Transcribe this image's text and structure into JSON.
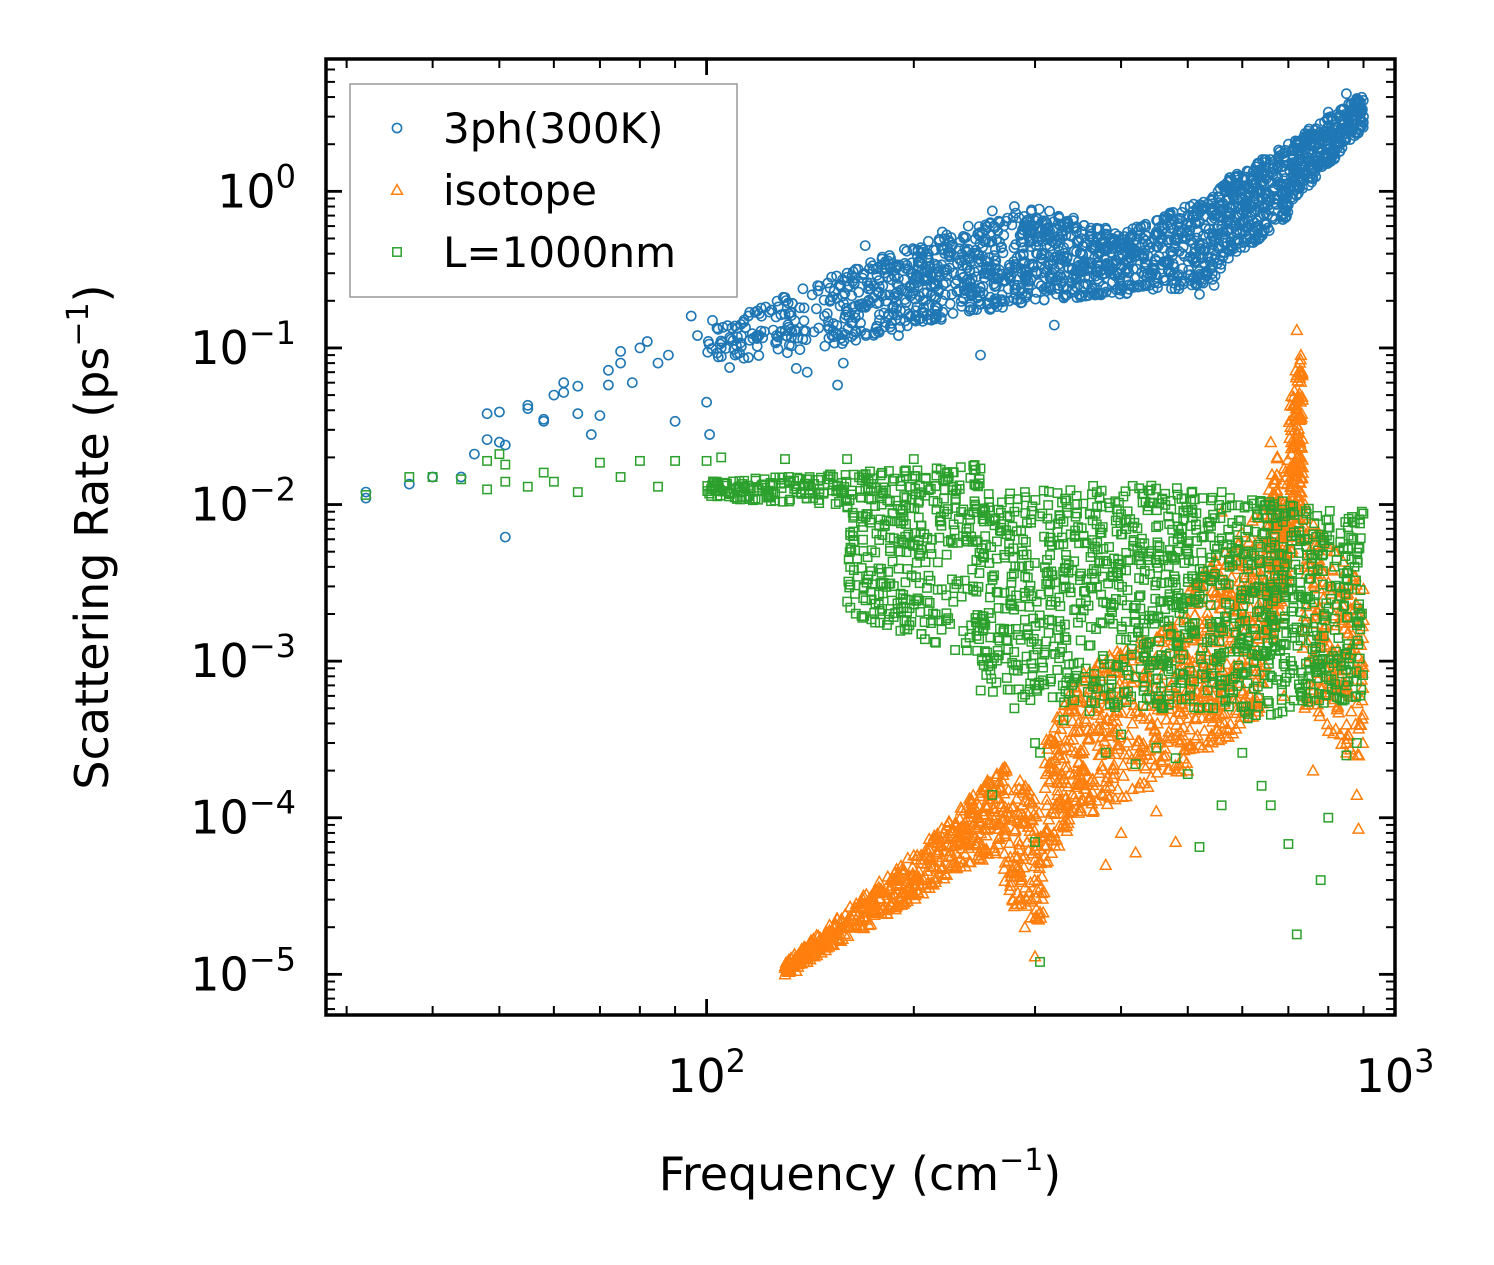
{
  "chart_data": {
    "type": "scatter",
    "title": "",
    "xscale": "log",
    "yscale": "log",
    "xlim": [
      28,
      1000
    ],
    "ylim": [
      5.5e-06,
      7
    ],
    "xlabel": {
      "main": "Frequency (cm",
      "sup": "−1",
      "tail": ")"
    },
    "ylabel": {
      "main": "Scattering Rate (ps",
      "sup": "−1",
      "tail": ")"
    },
    "x_ticks": [
      {
        "value": 100,
        "base": "10",
        "exp": "2"
      },
      {
        "value": 1000,
        "base": "10",
        "exp": "3"
      }
    ],
    "y_ticks": [
      {
        "value": 1,
        "base": "10",
        "exp": "0"
      },
      {
        "value": 0.1,
        "base": "10",
        "exp": "−1"
      },
      {
        "value": 0.01,
        "base": "10",
        "exp": "−2"
      },
      {
        "value": 0.001,
        "base": "10",
        "exp": "−3"
      },
      {
        "value": 0.0001,
        "base": "10",
        "exp": "−4"
      },
      {
        "value": 1e-05,
        "base": "10",
        "exp": "−5"
      }
    ],
    "legend_position": "top-left",
    "series": [
      {
        "name": "3ph(300K)",
        "marker": "circle",
        "color": "#1f77b4",
        "points": [
          [
            32,
            0.011
          ],
          [
            32,
            0.012
          ],
          [
            37,
            0.0135
          ],
          [
            40,
            0.015
          ],
          [
            44,
            0.015
          ],
          [
            46,
            0.021
          ],
          [
            48,
            0.026
          ],
          [
            48,
            0.038
          ],
          [
            50,
            0.039
          ],
          [
            50,
            0.025
          ],
          [
            51,
            0.024
          ],
          [
            51,
            0.0062
          ],
          [
            55,
            0.043
          ],
          [
            55,
            0.041
          ],
          [
            58,
            0.034
          ],
          [
            58,
            0.035
          ],
          [
            60,
            0.05
          ],
          [
            62,
            0.06
          ],
          [
            62,
            0.052
          ],
          [
            65,
            0.057
          ],
          [
            65,
            0.038
          ],
          [
            68,
            0.028
          ],
          [
            70,
            0.037
          ],
          [
            72,
            0.058
          ],
          [
            72,
            0.072
          ],
          [
            75,
            0.095
          ],
          [
            75,
            0.08
          ],
          [
            78,
            0.06
          ],
          [
            80,
            0.1
          ],
          [
            82,
            0.11
          ],
          [
            85,
            0.08
          ],
          [
            88,
            0.09
          ],
          [
            90,
            0.034
          ],
          [
            95,
            0.16
          ],
          [
            97,
            0.12
          ],
          [
            100,
            0.045
          ],
          [
            101,
            0.028
          ],
          [
            102,
            0.15
          ],
          [
            105,
            0.1
          ],
          [
            108,
            0.075
          ],
          [
            110,
            0.09
          ],
          [
            115,
            0.16
          ],
          [
            120,
            0.18
          ],
          [
            125,
            0.13
          ],
          [
            130,
            0.21
          ],
          [
            135,
            0.074
          ],
          [
            140,
            0.07
          ],
          [
            145,
            0.25
          ],
          [
            150,
            0.26
          ],
          [
            155,
            0.058
          ],
          [
            158,
            0.08
          ],
          [
            160,
            0.3
          ],
          [
            170,
            0.45
          ],
          [
            175,
            0.25
          ],
          [
            180,
            0.38
          ],
          [
            190,
            0.12
          ],
          [
            200,
            0.42
          ],
          [
            210,
            0.48
          ],
          [
            220,
            0.55
          ],
          [
            240,
            0.6
          ],
          [
            250,
            0.09
          ],
          [
            260,
            0.75
          ],
          [
            280,
            0.8
          ],
          [
            300,
            0.65
          ],
          [
            320,
            0.14
          ],
          [
            350,
            0.5
          ],
          [
            400,
            0.32
          ],
          [
            450,
            0.55
          ],
          [
            500,
            0.7
          ],
          [
            520,
            0.22
          ],
          [
            560,
            0.6
          ],
          [
            600,
            0.8
          ],
          [
            650,
            1.2
          ],
          [
            700,
            2.0
          ],
          [
            750,
            2.5
          ],
          [
            800,
            3.2
          ],
          [
            850,
            4.2
          ],
          [
            900,
            3.0
          ]
        ],
        "bands": [
          {
            "x_from": 100,
            "x_to": 150,
            "lo_from": 0.08,
            "lo_to": 0.1,
            "hi_from": 0.13,
            "hi_to": 0.28,
            "count": 110
          },
          {
            "x_from": 150,
            "x_to": 200,
            "lo_from": 0.1,
            "lo_to": 0.14,
            "hi_from": 0.28,
            "hi_to": 0.45,
            "count": 190
          },
          {
            "x_from": 200,
            "x_to": 300,
            "lo_from": 0.14,
            "lo_to": 0.2,
            "hi_from": 0.45,
            "hi_to": 0.82,
            "count": 380
          },
          {
            "x_from": 300,
            "x_to": 400,
            "lo_from": 0.2,
            "lo_to": 0.22,
            "hi_from": 0.8,
            "hi_to": 0.55,
            "count": 300
          },
          {
            "x_from": 400,
            "x_to": 550,
            "lo_from": 0.22,
            "lo_to": 0.25,
            "hi_from": 0.55,
            "hi_to": 0.95,
            "count": 320
          },
          {
            "x_from": 550,
            "x_to": 700,
            "lo_from": 0.3,
            "lo_to": 0.7,
            "hi_from": 1.1,
            "hi_to": 2.0,
            "count": 320
          },
          {
            "x_from": 700,
            "x_to": 900,
            "lo_from": 0.8,
            "lo_to": 2.5,
            "hi_from": 2.0,
            "hi_to": 4.2,
            "count": 320
          }
        ]
      },
      {
        "name": "isotope",
        "marker": "triangle",
        "color": "#ff7f0e",
        "points": [
          [
            130,
            1e-05
          ],
          [
            135,
            1.05e-05
          ],
          [
            140,
            1.2e-05
          ],
          [
            150,
            1.6e-05
          ],
          [
            170,
            2.6e-05
          ],
          [
            200,
            4e-05
          ],
          [
            220,
            7.5e-05
          ],
          [
            230,
            9e-05
          ],
          [
            250,
            9e-05
          ],
          [
            270,
            0.0002
          ],
          [
            280,
            0.00015
          ],
          [
            290,
            2e-05
          ],
          [
            300,
            1.3e-05
          ],
          [
            305,
            2.5e-05
          ],
          [
            320,
            0.0003
          ],
          [
            340,
            0.0006
          ],
          [
            360,
            0.00013
          ],
          [
            380,
            5e-05
          ],
          [
            400,
            8e-05
          ],
          [
            420,
            6e-05
          ],
          [
            450,
            0.00011
          ],
          [
            480,
            7e-05
          ],
          [
            500,
            0.0002
          ],
          [
            540,
            0.004
          ],
          [
            560,
            0.009
          ],
          [
            580,
            0.0007
          ],
          [
            600,
            0.005
          ],
          [
            630,
            0.002
          ],
          [
            660,
            0.025
          ],
          [
            690,
            0.0006
          ],
          [
            720,
            0.13
          ],
          [
            730,
            0.09
          ],
          [
            740,
            0.01
          ],
          [
            760,
            0.0002
          ],
          [
            800,
            0.0006
          ],
          [
            820,
            0.00065
          ],
          [
            850,
            0.0003
          ],
          [
            870,
            0.00025
          ],
          [
            880,
            0.00014
          ],
          [
            885,
            8.5e-05
          ]
        ],
        "bands": [
          {
            "x_from": 130,
            "x_to": 200,
            "lo_from": 1e-05,
            "lo_to": 3e-05,
            "hi_from": 1.2e-05,
            "hi_to": 6e-05,
            "count": 280
          },
          {
            "x_from": 200,
            "x_to": 240,
            "lo_from": 3e-05,
            "lo_to": 5e-05,
            "hi_from": 6e-05,
            "hi_to": 0.00013,
            "count": 130
          },
          {
            "x_from": 240,
            "x_to": 270,
            "lo_from": 5e-05,
            "lo_to": 6e-05,
            "hi_from": 0.00013,
            "hi_to": 0.00022,
            "count": 110
          },
          {
            "x_from": 270,
            "x_to": 310,
            "lo_from": 3e-05,
            "lo_to": 2e-05,
            "hi_from": 0.00022,
            "hi_to": 0.00012,
            "count": 140
          },
          {
            "x_from": 310,
            "x_to": 350,
            "lo_from": 5e-05,
            "lo_to": 0.0001,
            "hi_from": 0.0003,
            "hi_to": 0.0009,
            "count": 150
          },
          {
            "x_from": 350,
            "x_to": 500,
            "lo_from": 0.0001,
            "lo_to": 0.0002,
            "hi_from": 0.0009,
            "hi_to": 0.002,
            "count": 320
          },
          {
            "x_from": 500,
            "x_to": 650,
            "lo_from": 0.0002,
            "lo_to": 0.0005,
            "hi_from": 0.003,
            "hi_to": 0.01,
            "count": 320
          },
          {
            "x_from": 650,
            "x_to": 680,
            "lo_from": 0.001,
            "lo_to": 0.002,
            "hi_from": 0.012,
            "hi_to": 0.025,
            "count": 110
          },
          {
            "x_from": 680,
            "x_to": 710,
            "lo_from": 0.002,
            "lo_to": 0.005,
            "hi_from": 0.01,
            "hi_to": 0.06,
            "count": 90
          },
          {
            "x_from": 710,
            "x_to": 735,
            "lo_from": 0.005,
            "lo_to": 0.01,
            "hi_from": 0.06,
            "hi_to": 0.11,
            "count": 110
          },
          {
            "x_from": 735,
            "x_to": 900,
            "lo_from": 0.0005,
            "lo_to": 0.0002,
            "hi_from": 0.01,
            "hi_to": 0.003,
            "count": 220
          }
        ]
      },
      {
        "name": "L=1000nm",
        "marker": "square",
        "color": "#2ca02c",
        "points": [
          [
            32,
            0.0115
          ],
          [
            37,
            0.015
          ],
          [
            40,
            0.015
          ],
          [
            44,
            0.0145
          ],
          [
            48,
            0.0125
          ],
          [
            48,
            0.019
          ],
          [
            50,
            0.021
          ],
          [
            51,
            0.014
          ],
          [
            51,
            0.018
          ],
          [
            55,
            0.013
          ],
          [
            58,
            0.016
          ],
          [
            60,
            0.014
          ],
          [
            65,
            0.012
          ],
          [
            70,
            0.0185
          ],
          [
            75,
            0.015
          ],
          [
            80,
            0.019
          ],
          [
            85,
            0.013
          ],
          [
            90,
            0.019
          ],
          [
            100,
            0.019
          ],
          [
            105,
            0.02
          ],
          [
            130,
            0.0195
          ],
          [
            160,
            0.0195
          ],
          [
            200,
            0.0195
          ],
          [
            250,
            0.017
          ],
          [
            280,
            0.009
          ],
          [
            290,
            0.012
          ],
          [
            300,
            0.0003
          ],
          [
            305,
            0.00026
          ],
          [
            330,
            0.00042
          ],
          [
            360,
            0.00048
          ],
          [
            380,
            0.00026
          ],
          [
            400,
            0.00034
          ],
          [
            420,
            0.00022
          ],
          [
            450,
            0.00028
          ],
          [
            480,
            0.00024
          ],
          [
            500,
            0.00019
          ],
          [
            520,
            6.5e-05
          ],
          [
            560,
            0.00012
          ],
          [
            600,
            0.00026
          ],
          [
            640,
            0.00016
          ],
          [
            660,
            0.00012
          ],
          [
            700,
            6.8e-05
          ],
          [
            720,
            1.8e-05
          ],
          [
            730,
            0.0006
          ],
          [
            780,
            4e-05
          ],
          [
            800,
            0.0001
          ],
          [
            850,
            0.00025
          ],
          [
            880,
            0.0003
          ],
          [
            890,
            0.0016
          ],
          [
            895,
            0.009
          ],
          [
            260,
            0.00014
          ],
          [
            280,
            0.0005
          ],
          [
            300,
            7e-05
          ],
          [
            305,
            1.2e-05
          ]
        ],
        "bands": [
          {
            "x_from": 100,
            "x_to": 250,
            "lo_from": 0.011,
            "lo_to": 0.009,
            "hi_from": 0.014,
            "hi_to": 0.018,
            "count": 260
          },
          {
            "x_from": 160,
            "x_to": 250,
            "lo_from": 0.002,
            "lo_to": 0.001,
            "hi_from": 0.01,
            "hi_to": 0.009,
            "count": 250
          },
          {
            "x_from": 250,
            "x_to": 400,
            "lo_from": 0.0006,
            "lo_to": 0.0005,
            "hi_from": 0.012,
            "hi_to": 0.014,
            "count": 420
          },
          {
            "x_from": 400,
            "x_to": 600,
            "lo_from": 0.0005,
            "lo_to": 0.0005,
            "hi_from": 0.014,
            "hi_to": 0.012,
            "count": 420
          },
          {
            "x_from": 600,
            "x_to": 900,
            "lo_from": 0.0004,
            "lo_to": 0.0006,
            "hi_from": 0.012,
            "hi_to": 0.009,
            "count": 420
          }
        ]
      }
    ]
  }
}
